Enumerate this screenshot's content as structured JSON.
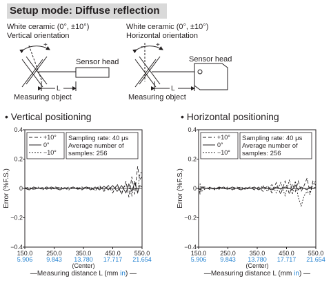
{
  "header": {
    "title": "Setup mode: Diffuse reflection"
  },
  "setups": [
    {
      "material": "White ceramic (0°, ±10°)",
      "orientation": "Vertical orientation",
      "sensor_label": "Sensor head",
      "object_label": "Measuring object",
      "distance_label": "L",
      "angle_minus": "−",
      "angle_plus": "+"
    },
    {
      "material": "White ceramic (0°, ±10°)",
      "orientation": "Horizontal orientation",
      "sensor_label": "Sensor head",
      "object_label": "Measuring object",
      "distance_label": "L",
      "angle_minus": "−",
      "angle_plus": "+"
    }
  ],
  "colors": {
    "axis": "#231f20",
    "inch_labels": "#1e7fd0",
    "title_bg": "#d9d9d9"
  },
  "chart_data": [
    {
      "type": "line",
      "title": "• Vertical positioning",
      "ylabel": "Error (%F.S.)",
      "xlabel_prefix": "—Measuring distance L (mm ",
      "xlabel_in": "in",
      "xlabel_suffix": ") —",
      "x_center_label": "(Center)",
      "xlim": [
        150,
        550
      ],
      "ylim": [
        -0.4,
        0.4
      ],
      "xticks": [
        150,
        250,
        350,
        450,
        550
      ],
      "xtick_labels": [
        "150.0",
        "250.0",
        "350.0",
        "450.0",
        "550.0"
      ],
      "xtick_inch_labels": [
        "5.906",
        "9.843",
        "13.780",
        "17.717",
        "21.654"
      ],
      "yticks": [
        0.4,
        0.2,
        0,
        -0.2,
        -0.4
      ],
      "ytick_labels": [
        "0.4",
        "0.2",
        "0",
        "−0.2",
        "−0.4"
      ],
      "legend_entries": [
        "+10°",
        "0°",
        "−10°"
      ],
      "info_lines": [
        "Sampling rate: 40 μs",
        "Average number of",
        "samples: 256"
      ],
      "grid": false,
      "series": [
        {
          "name": "+10°",
          "dash": "long",
          "x": [
            150,
            165,
            180,
            195,
            210,
            225,
            240,
            255,
            270,
            285,
            300,
            315,
            330,
            345,
            360,
            375,
            390,
            405,
            420,
            435,
            450,
            465,
            480,
            495,
            505,
            515,
            525,
            535,
            542,
            550
          ],
          "y": [
            0,
            0.01,
            -0.01,
            0.005,
            0,
            0.01,
            -0.005,
            0.01,
            0,
            -0.005,
            0.01,
            0,
            0.005,
            -0.01,
            0.01,
            0,
            -0.01,
            0.02,
            -0.02,
            0.02,
            -0.03,
            0.03,
            -0.04,
            0.05,
            -0.06,
            0.08,
            -0.04,
            0.15,
            0.06,
            0.08
          ]
        },
        {
          "name": "0°",
          "dash": "solid",
          "x": [
            150,
            165,
            180,
            195,
            210,
            225,
            240,
            255,
            270,
            285,
            300,
            315,
            330,
            345,
            360,
            375,
            390,
            405,
            420,
            435,
            450,
            465,
            480,
            495,
            505,
            515,
            525,
            535,
            542,
            550
          ],
          "y": [
            0,
            -0.01,
            0.01,
            0,
            0.005,
            -0.005,
            0.01,
            0,
            -0.01,
            0.005,
            0,
            0.01,
            -0.005,
            0,
            0.01,
            -0.01,
            0.01,
            -0.01,
            0.015,
            -0.01,
            0.02,
            -0.02,
            0.02,
            -0.03,
            0.03,
            -0.02,
            0.04,
            -0.03,
            0.02,
            0.01
          ]
        },
        {
          "name": "−10°",
          "dash": "short",
          "x": [
            150,
            165,
            180,
            195,
            210,
            225,
            240,
            255,
            270,
            285,
            300,
            315,
            330,
            345,
            360,
            375,
            390,
            405,
            420,
            435,
            450,
            465,
            480,
            495,
            505,
            515,
            525,
            535,
            542,
            550
          ],
          "y": [
            0.005,
            0,
            -0.005,
            0.01,
            -0.01,
            0.005,
            0,
            -0.005,
            0.01,
            0,
            -0.01,
            0.005,
            0,
            0.01,
            -0.005,
            0.01,
            -0.015,
            0.01,
            -0.01,
            0.02,
            -0.01,
            0.02,
            -0.03,
            0.03,
            0.01,
            -0.05,
            0.05,
            -0.02,
            0.09,
            0.12
          ]
        }
      ]
    },
    {
      "type": "line",
      "title": "• Horizontal positioning",
      "ylabel": "Error (%F.S.)",
      "xlabel_prefix": "—Measuring distance L (mm ",
      "xlabel_in": "in",
      "xlabel_suffix": ") —",
      "x_center_label": "(Center)",
      "xlim": [
        150,
        550
      ],
      "ylim": [
        -0.4,
        0.4
      ],
      "xticks": [
        150,
        250,
        350,
        450,
        550
      ],
      "xtick_labels": [
        "150.0",
        "250.0",
        "350.0",
        "450.0",
        "550.0"
      ],
      "xtick_inch_labels": [
        "5.906",
        "9.843",
        "13.780",
        "17.717",
        "21.654"
      ],
      "yticks": [
        0.4,
        0.2,
        0,
        -0.2,
        -0.4
      ],
      "ytick_labels": [
        "0.4",
        "0.2",
        "0",
        "−0.2",
        "−0.4"
      ],
      "legend_entries": [
        "+10°",
        "0°",
        "−10°"
      ],
      "info_lines": [
        "Sampling rate: 40 μs",
        "Average number of",
        "samples: 256"
      ],
      "grid": false,
      "series": [
        {
          "name": "+10°",
          "dash": "long",
          "x": [
            150,
            155,
            160,
            175,
            190,
            205,
            220,
            235,
            250,
            265,
            280,
            295,
            310,
            325,
            340,
            355,
            370,
            385,
            400,
            415,
            430,
            445,
            460,
            470,
            480,
            490,
            500,
            510,
            520,
            530,
            540,
            550
          ],
          "y": [
            0.02,
            -0.04,
            0.01,
            0.01,
            -0.01,
            0.005,
            -0.005,
            0.01,
            0,
            -0.01,
            0.01,
            0,
            -0.005,
            0.01,
            -0.01,
            0.01,
            -0.02,
            0.02,
            -0.03,
            0.04,
            -0.04,
            0.05,
            -0.04,
            0.03,
            -0.02,
            0.05,
            -0.02,
            0.02,
            0.07,
            -0.03,
            0.05,
            0.02
          ]
        },
        {
          "name": "0°",
          "dash": "solid",
          "x": [
            150,
            155,
            160,
            175,
            190,
            205,
            220,
            235,
            250,
            265,
            280,
            295,
            310,
            325,
            340,
            355,
            370,
            385,
            400,
            415,
            430,
            445,
            460,
            470,
            480,
            490,
            500,
            510,
            520,
            530,
            540,
            550
          ],
          "y": [
            0,
            -0.01,
            0.01,
            0,
            0.005,
            -0.005,
            0.01,
            0,
            -0.005,
            0.01,
            0,
            -0.01,
            0.005,
            0,
            0.01,
            -0.01,
            0.01,
            0,
            -0.01,
            0.01,
            -0.005,
            0.01,
            0,
            -0.01,
            0.02,
            -0.01,
            0.01,
            0,
            -0.01,
            0.01,
            0,
            0.01
          ]
        },
        {
          "name": "−10°",
          "dash": "short",
          "x": [
            150,
            155,
            160,
            175,
            190,
            205,
            220,
            235,
            250,
            265,
            280,
            295,
            310,
            325,
            340,
            355,
            370,
            385,
            400,
            415,
            430,
            445,
            460,
            470,
            480,
            490,
            500,
            510,
            520,
            530,
            540,
            550
          ],
          "y": [
            0.01,
            0.03,
            -0.02,
            0,
            0.01,
            -0.01,
            0.005,
            0,
            0.01,
            -0.01,
            0,
            0.01,
            -0.005,
            0,
            0.01,
            -0.01,
            0.02,
            -0.02,
            0.03,
            -0.03,
            0.04,
            -0.05,
            0.06,
            -0.04,
            0.05,
            -0.06,
            -0.12,
            -0.05,
            -0.02,
            -0.04,
            0.03,
            0.05
          ]
        }
      ]
    }
  ]
}
